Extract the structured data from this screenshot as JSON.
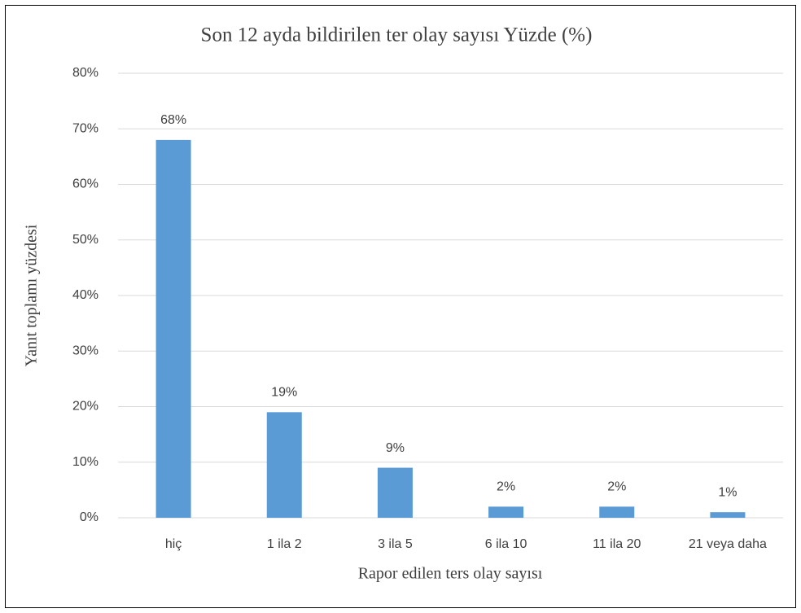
{
  "chart_data": {
    "type": "bar",
    "title": "Son 12 ayda bildirilen ter olay sayısı Yüzde (%)",
    "x_label": "Rapor edilen ters olay sayısı",
    "y_label": "Yanıt toplamı yüzdesi",
    "categories": [
      "hiç",
      "1 ila 2",
      "3 ila 5",
      "6 ila 10",
      "11 ila 20",
      "21 veya daha"
    ],
    "values": [
      68,
      19,
      9,
      2,
      2,
      1
    ],
    "value_labels": [
      "68%",
      "19%",
      "9%",
      "2%",
      "2%",
      "1%"
    ],
    "color": "#5b9bd5",
    "ylim": [
      0,
      80
    ],
    "yticks": [
      {
        "value": 0,
        "label": "0%"
      },
      {
        "value": 10,
        "label": "10%"
      },
      {
        "value": 20,
        "label": "20%"
      },
      {
        "value": 30,
        "label": "30%"
      },
      {
        "value": 40,
        "label": "40%"
      },
      {
        "value": 50,
        "label": "50%"
      },
      {
        "value": 60,
        "label": "60%"
      },
      {
        "value": 70,
        "label": "70%"
      },
      {
        "value": 80,
        "label": "80%"
      }
    ],
    "grid": true
  }
}
